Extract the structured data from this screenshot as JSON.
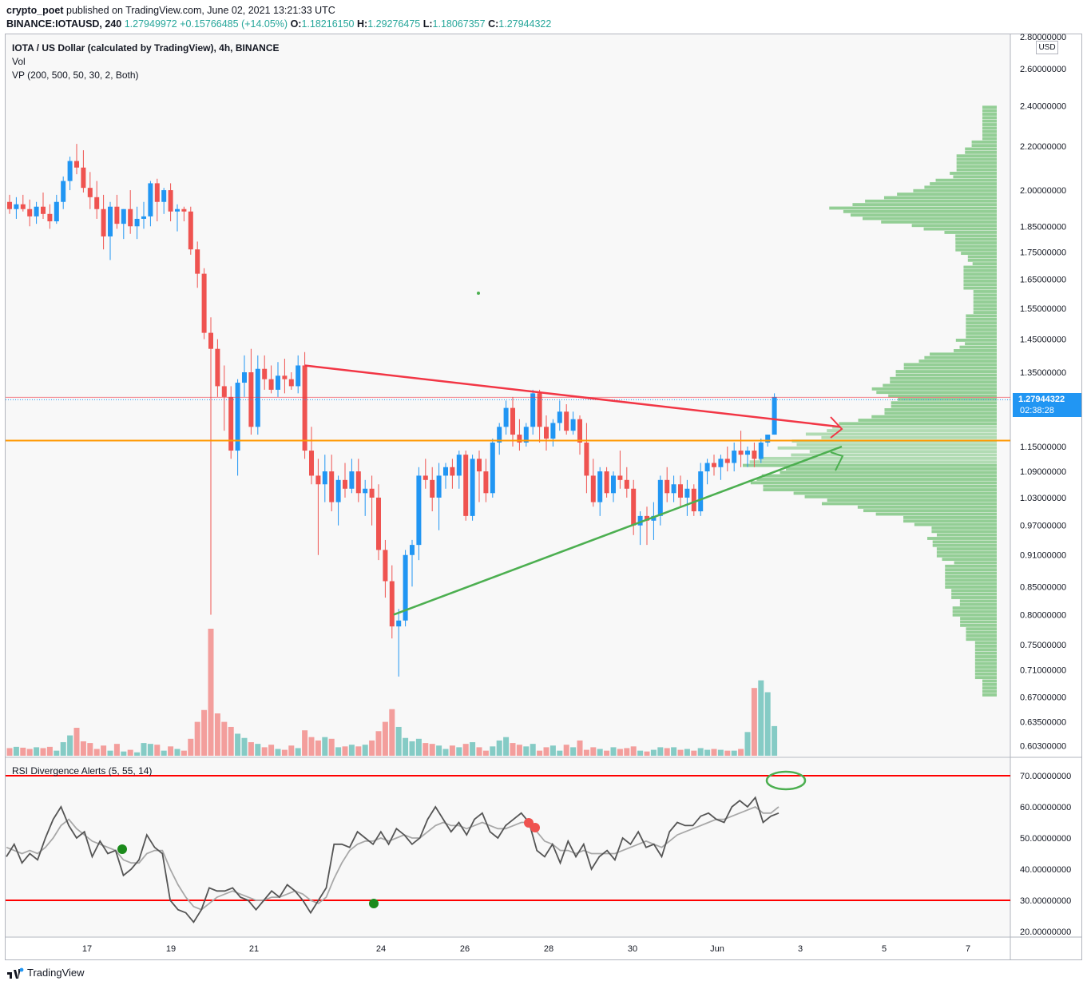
{
  "header": {
    "author": "crypto_poet",
    "published_text": "published on TradingView.com, June 02, 2021 13:21:33 UTC",
    "symbol": "BINANCE:IOTAUSD, 240",
    "last_price": "1.27949972",
    "change": "+0.15766485 (+14.05%)",
    "o_label": "O:",
    "o_value": "1.18216150",
    "h_label": "H:",
    "h_value": "1.29276475",
    "l_label": "L:",
    "l_value": "1.18067357",
    "c_label": "C:",
    "c_value": "1.27944322"
  },
  "legend": {
    "title": "IOTA / US Dollar (calculated by TradingView), 4h, BINANCE",
    "vol": "Vol",
    "vp": "VP (200, 500, 50, 30, 2, Both)",
    "rsi": "RSI Divergence Alerts (5, 55, 14)"
  },
  "price_axis": {
    "currency": "USD",
    "ticks": [
      "2.80000000",
      "2.60000000",
      "2.40000000",
      "2.20000000",
      "2.00000000",
      "1.85000000",
      "1.75000000",
      "1.65000000",
      "1.55000000",
      "1.45000000",
      "1.35000000",
      "1.15000000",
      "1.09000000",
      "1.03000000",
      "0.97000000",
      "0.91000000",
      "0.85000000",
      "0.80000000",
      "0.75000000",
      "0.71000000",
      "0.67000000",
      "0.63500000",
      "0.60300000"
    ],
    "current_price": "1.27944322",
    "countdown": "02:38:28"
  },
  "rsi_axis": {
    "ticks": [
      "70.00000000",
      "60.00000000",
      "50.00000000",
      "40.00000000",
      "30.00000000",
      "20.00000000"
    ]
  },
  "time_axis": {
    "ticks": [
      "17",
      "19",
      "21",
      "24",
      "26",
      "28",
      "30",
      "Jun",
      "3",
      "5",
      "7"
    ]
  },
  "footer": {
    "brand": "TradingView"
  },
  "colors": {
    "up": "#2196f3",
    "down": "#ef5350",
    "vol_up": "#26a69a",
    "vol_down": "#ef5350",
    "vp": "#81c784",
    "resistance": "#f23645",
    "support": "#4caf50",
    "level": "#ff9800",
    "rsi": "#555555",
    "rsi_ma": "#a8a8a8",
    "rsi_band": "#ff0000"
  },
  "chart_data": {
    "type": "candlestick",
    "timeframe": "4h",
    "x_range_days": [
      "May 15",
      "Jun 8"
    ],
    "y_scale": "log",
    "candles": [
      [
        1.95,
        1.98,
        1.9,
        1.92
      ],
      [
        1.92,
        1.97,
        1.88,
        1.94
      ],
      [
        1.94,
        1.98,
        1.91,
        1.92
      ],
      [
        1.92,
        1.96,
        1.85,
        1.89
      ],
      [
        1.89,
        1.95,
        1.86,
        1.93
      ],
      [
        1.93,
        1.99,
        1.88,
        1.9
      ],
      [
        1.9,
        1.94,
        1.84,
        1.87
      ],
      [
        1.87,
        1.98,
        1.86,
        1.95
      ],
      [
        1.95,
        2.06,
        1.92,
        2.04
      ],
      [
        2.04,
        2.15,
        2.0,
        2.13
      ],
      [
        2.13,
        2.21,
        2.07,
        2.1
      ],
      [
        2.1,
        2.18,
        1.99,
        2.01
      ],
      [
        2.01,
        2.08,
        1.92,
        1.97
      ],
      [
        1.97,
        2.04,
        1.88,
        1.92
      ],
      [
        1.92,
        1.98,
        1.76,
        1.81
      ],
      [
        1.81,
        1.95,
        1.72,
        1.93
      ],
      [
        1.93,
        1.98,
        1.84,
        1.86
      ],
      [
        1.86,
        1.92,
        1.8,
        1.92
      ],
      [
        1.92,
        2.0,
        1.82,
        1.85
      ],
      [
        1.85,
        1.93,
        1.8,
        1.88
      ],
      [
        1.88,
        1.95,
        1.84,
        1.89
      ],
      [
        1.89,
        2.04,
        1.85,
        2.03
      ],
      [
        2.03,
        2.05,
        1.87,
        1.95
      ],
      [
        1.95,
        2.01,
        1.9,
        2.0
      ],
      [
        2.0,
        2.03,
        1.87,
        1.91
      ],
      [
        1.91,
        1.94,
        1.83,
        1.92
      ],
      [
        1.92,
        1.93,
        1.87,
        1.91
      ],
      [
        1.91,
        1.93,
        1.74,
        1.76
      ],
      [
        1.76,
        1.79,
        1.62,
        1.67
      ],
      [
        1.67,
        1.69,
        1.45,
        1.47
      ],
      [
        1.47,
        1.52,
        0.8,
        1.42
      ],
      [
        1.42,
        1.45,
        1.28,
        1.31
      ],
      [
        1.31,
        1.37,
        1.19,
        1.28
      ],
      [
        1.28,
        1.31,
        1.12,
        1.14
      ],
      [
        1.14,
        1.33,
        1.08,
        1.32
      ],
      [
        1.32,
        1.4,
        1.28,
        1.35
      ],
      [
        1.35,
        1.42,
        1.18,
        1.2
      ],
      [
        1.2,
        1.4,
        1.18,
        1.36
      ],
      [
        1.36,
        1.4,
        1.3,
        1.33
      ],
      [
        1.33,
        1.37,
        1.29,
        1.3
      ],
      [
        1.3,
        1.38,
        1.28,
        1.34
      ],
      [
        1.34,
        1.39,
        1.29,
        1.33
      ],
      [
        1.33,
        1.35,
        1.3,
        1.31
      ],
      [
        1.31,
        1.4,
        1.29,
        1.37
      ],
      [
        1.37,
        1.41,
        1.12,
        1.14
      ],
      [
        1.14,
        1.2,
        1.06,
        1.08
      ],
      [
        1.08,
        1.12,
        0.91,
        1.06
      ],
      [
        1.06,
        1.13,
        1.02,
        1.09
      ],
      [
        1.09,
        1.13,
        1.0,
        1.02
      ],
      [
        1.02,
        1.08,
        0.97,
        1.07
      ],
      [
        1.07,
        1.11,
        1.03,
        1.05
      ],
      [
        1.05,
        1.12,
        1.04,
        1.09
      ],
      [
        1.09,
        1.12,
        1.02,
        1.04
      ],
      [
        1.04,
        1.07,
        0.99,
        1.05
      ],
      [
        1.05,
        1.08,
        0.97,
        1.03
      ],
      [
        1.03,
        1.06,
        0.9,
        0.92
      ],
      [
        0.92,
        0.94,
        0.83,
        0.86
      ],
      [
        0.86,
        0.89,
        0.76,
        0.78
      ],
      [
        0.78,
        0.81,
        0.7,
        0.79
      ],
      [
        0.79,
        0.92,
        0.78,
        0.91
      ],
      [
        0.91,
        0.94,
        0.85,
        0.93
      ],
      [
        0.93,
        1.1,
        0.9,
        1.08
      ],
      [
        1.08,
        1.12,
        1.05,
        1.07
      ],
      [
        1.07,
        1.1,
        1.0,
        1.03
      ],
      [
        1.03,
        1.11,
        0.96,
        1.08
      ],
      [
        1.08,
        1.11,
        1.05,
        1.1
      ],
      [
        1.1,
        1.12,
        1.05,
        1.08
      ],
      [
        1.08,
        1.14,
        1.05,
        1.13
      ],
      [
        1.13,
        1.14,
        0.98,
        0.99
      ],
      [
        0.99,
        1.13,
        0.98,
        1.12
      ],
      [
        1.12,
        1.14,
        1.02,
        1.09
      ],
      [
        1.09,
        1.12,
        1.02,
        1.04
      ],
      [
        1.04,
        1.17,
        1.03,
        1.16
      ],
      [
        1.16,
        1.21,
        1.13,
        1.2
      ],
      [
        1.2,
        1.27,
        1.18,
        1.25
      ],
      [
        1.25,
        1.28,
        1.15,
        1.18
      ],
      [
        1.18,
        1.22,
        1.14,
        1.16
      ],
      [
        1.16,
        1.21,
        1.15,
        1.2
      ],
      [
        1.2,
        1.3,
        1.18,
        1.29
      ],
      [
        1.29,
        1.3,
        1.16,
        1.2
      ],
      [
        1.2,
        1.23,
        1.14,
        1.17
      ],
      [
        1.17,
        1.22,
        1.15,
        1.21
      ],
      [
        1.21,
        1.27,
        1.19,
        1.24
      ],
      [
        1.24,
        1.26,
        1.18,
        1.19
      ],
      [
        1.19,
        1.24,
        1.18,
        1.22
      ],
      [
        1.22,
        1.23,
        1.13,
        1.16
      ],
      [
        1.16,
        1.21,
        1.04,
        1.08
      ],
      [
        1.08,
        1.12,
        1.01,
        1.02
      ],
      [
        1.02,
        1.1,
        0.99,
        1.09
      ],
      [
        1.09,
        1.1,
        1.03,
        1.04
      ],
      [
        1.04,
        1.09,
        1.02,
        1.08
      ],
      [
        1.08,
        1.14,
        1.05,
        1.07
      ],
      [
        1.07,
        1.1,
        1.03,
        1.05
      ],
      [
        1.05,
        1.07,
        0.95,
        0.97
      ],
      [
        0.97,
        1.0,
        0.93,
        0.99
      ],
      [
        0.99,
        1.01,
        0.93,
        0.98
      ],
      [
        0.98,
        1.02,
        0.94,
        0.99
      ],
      [
        0.99,
        1.08,
        0.97,
        1.07
      ],
      [
        1.07,
        1.1,
        1.02,
        1.04
      ],
      [
        1.04,
        1.08,
        1.02,
        1.06
      ],
      [
        1.06,
        1.08,
        1.01,
        1.03
      ],
      [
        1.03,
        1.07,
        0.99,
        1.05
      ],
      [
        1.05,
        1.06,
        0.99,
        1.0
      ],
      [
        1.0,
        1.11,
        0.99,
        1.09
      ],
      [
        1.09,
        1.12,
        1.06,
        1.11
      ],
      [
        1.11,
        1.13,
        1.08,
        1.1
      ],
      [
        1.1,
        1.13,
        1.07,
        1.12
      ],
      [
        1.12,
        1.15,
        1.09,
        1.11
      ],
      [
        1.11,
        1.16,
        1.09,
        1.14
      ],
      [
        1.14,
        1.19,
        1.1,
        1.13
      ],
      [
        1.13,
        1.15,
        1.1,
        1.14
      ],
      [
        1.14,
        1.16,
        1.1,
        1.12
      ],
      [
        1.12,
        1.17,
        1.11,
        1.16
      ],
      [
        1.16,
        1.18,
        1.15,
        1.18
      ],
      [
        1.18,
        1.29,
        1.18,
        1.28
      ]
    ],
    "volume": [
      18,
      21,
      19,
      16,
      20,
      18,
      21,
      12,
      32,
      48,
      66,
      34,
      30,
      16,
      24,
      12,
      28,
      10,
      14,
      8,
      30,
      28,
      26,
      12,
      22,
      16,
      12,
      40,
      80,
      108,
      300,
      100,
      80,
      68,
      52,
      42,
      32,
      28,
      20,
      26,
      16,
      14,
      24,
      18,
      60,
      44,
      36,
      44,
      40,
      20,
      22,
      26,
      22,
      26,
      36,
      58,
      80,
      110,
      68,
      42,
      34,
      40,
      30,
      28,
      24,
      16,
      24,
      20,
      28,
      32,
      20,
      12,
      22,
      36,
      44,
      30,
      26,
      22,
      28,
      12,
      20,
      24,
      12,
      26,
      20,
      36,
      14,
      20,
      16,
      12,
      20,
      16,
      18,
      22,
      12,
      10,
      14,
      20,
      18,
      20,
      14,
      16,
      12,
      18,
      14,
      16,
      14,
      12,
      12,
      16,
      56,
      160,
      178,
      150,
      70
    ],
    "volume_profile_price_top": 2.4,
    "volume_profile_price_bottom": 0.67,
    "rsi": [
      44,
      48,
      42,
      45,
      43,
      50,
      56,
      60,
      54,
      50,
      52,
      44,
      49,
      45,
      46,
      38,
      40,
      43,
      51,
      47,
      45,
      30,
      27,
      26,
      23,
      27,
      34,
      33,
      33,
      34,
      31,
      30,
      27,
      30,
      33,
      31,
      35,
      33,
      30,
      26,
      30,
      34,
      48,
      48,
      47,
      52,
      50,
      48,
      52,
      48,
      53,
      51,
      48,
      50,
      56,
      60,
      56,
      52,
      55,
      51,
      56,
      58,
      52,
      50,
      54,
      56,
      58,
      55,
      46,
      44,
      48,
      42,
      49,
      44,
      48,
      40,
      44,
      46,
      43,
      50,
      48,
      52,
      47,
      48,
      44,
      52,
      55,
      54,
      54,
      57,
      58,
      56,
      55,
      60,
      62,
      60,
      63,
      55,
      57,
      58
    ],
    "rsi_ma": [
      47,
      46,
      45,
      46,
      45,
      47,
      50,
      54,
      56,
      53,
      51,
      49,
      48,
      47,
      46,
      43,
      42,
      42,
      45,
      46,
      46,
      40,
      35,
      31,
      28,
      27,
      29,
      31,
      32,
      33,
      32,
      31,
      30,
      30,
      31,
      31,
      32,
      33,
      32,
      30,
      29,
      31,
      37,
      42,
      46,
      48,
      49,
      49,
      50,
      49,
      50,
      51,
      50,
      50,
      52,
      54,
      55,
      54,
      54,
      53,
      54,
      55,
      54,
      53,
      53,
      54,
      55,
      55,
      52,
      49,
      48,
      46,
      46,
      45,
      46,
      45,
      45,
      45,
      45,
      46,
      47,
      48,
      49,
      48,
      47,
      49,
      51,
      52,
      53,
      54,
      55,
      56,
      56,
      57,
      58,
      59,
      60,
      58,
      58,
      60
    ],
    "rsi_bands": [
      70,
      30
    ],
    "rsi_ylim": [
      20,
      75
    ],
    "annotations": {
      "resistance_line": [
        [
          1.37,
          1.2
        ]
      ],
      "support_line": [
        [
          0.8,
          1.15
        ]
      ],
      "horizontal_level": 1.165,
      "current_price_line": 1.279
    }
  }
}
